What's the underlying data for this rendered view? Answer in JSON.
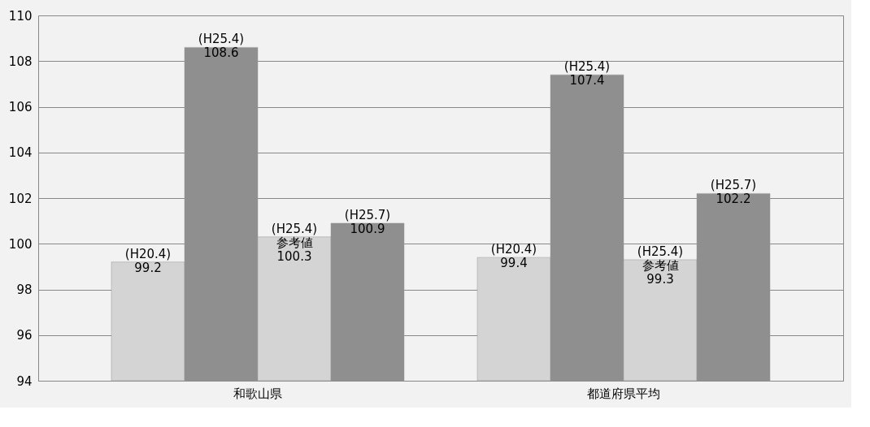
{
  "chart_data": {
    "type": "bar",
    "categories": [
      "和歌山県",
      "都道府県平均"
    ],
    "series": [
      {
        "color": "#d4d4d4",
        "values": [
          99.2,
          99.4
        ],
        "value_labels": [
          "(H20.4)\n99.2",
          "(H20.4)\n99.4"
        ]
      },
      {
        "color": "#8f8f8f",
        "values": [
          108.6,
          107.4
        ],
        "value_labels": [
          "(H25.4)\n108.6",
          "(H25.4)\n107.4"
        ]
      },
      {
        "color": "#d4d4d4",
        "values": [
          100.3,
          99.3
        ],
        "value_labels": [
          "(H25.4)\n参考値\n100.3",
          "(H25.4)\n参考値\n99.3"
        ]
      },
      {
        "color": "#8f8f8f",
        "values": [
          100.9,
          102.2
        ],
        "value_labels": [
          "(H25.7)\n100.9",
          "(H25.7)\n102.2"
        ]
      }
    ],
    "ylim": [
      94,
      110
    ],
    "yticks": [
      94,
      96,
      98,
      100,
      102,
      104,
      106,
      108,
      110
    ],
    "grid": "y",
    "legend": false
  }
}
